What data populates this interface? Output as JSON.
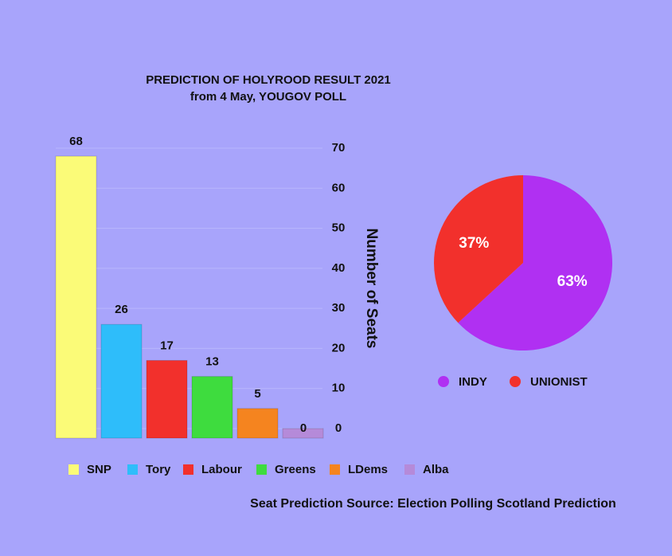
{
  "chart_data": [
    {
      "type": "bar",
      "title": "PREDICTION OF  HOLYROOD RESULT  2021",
      "subtitle": "from 4 May, YOUGOV POLL",
      "y_label": "Number of Seats",
      "categories": [
        "SNP",
        "Tory",
        "Labour",
        "Greens",
        "LDems",
        "Alba"
      ],
      "values": [
        68,
        26,
        17,
        13,
        5,
        0
      ],
      "colors": [
        "#fbfb78",
        "#2ebdfa",
        "#f2302c",
        "#3edc3e",
        "#f5841f",
        "#b58ad9"
      ],
      "ylim": [
        0,
        70
      ],
      "yticks": [
        0,
        10,
        20,
        30,
        40,
        50,
        60,
        70
      ],
      "grid": true,
      "source": "Seat Prediction Source: Election Polling Scotland Prediction"
    },
    {
      "type": "pie",
      "categories": [
        "INDY",
        "UNIONIST"
      ],
      "values": [
        63,
        37
      ],
      "value_labels": [
        "63%",
        "37%"
      ],
      "colors": [
        "#b030f2",
        "#f2302c"
      ]
    }
  ]
}
